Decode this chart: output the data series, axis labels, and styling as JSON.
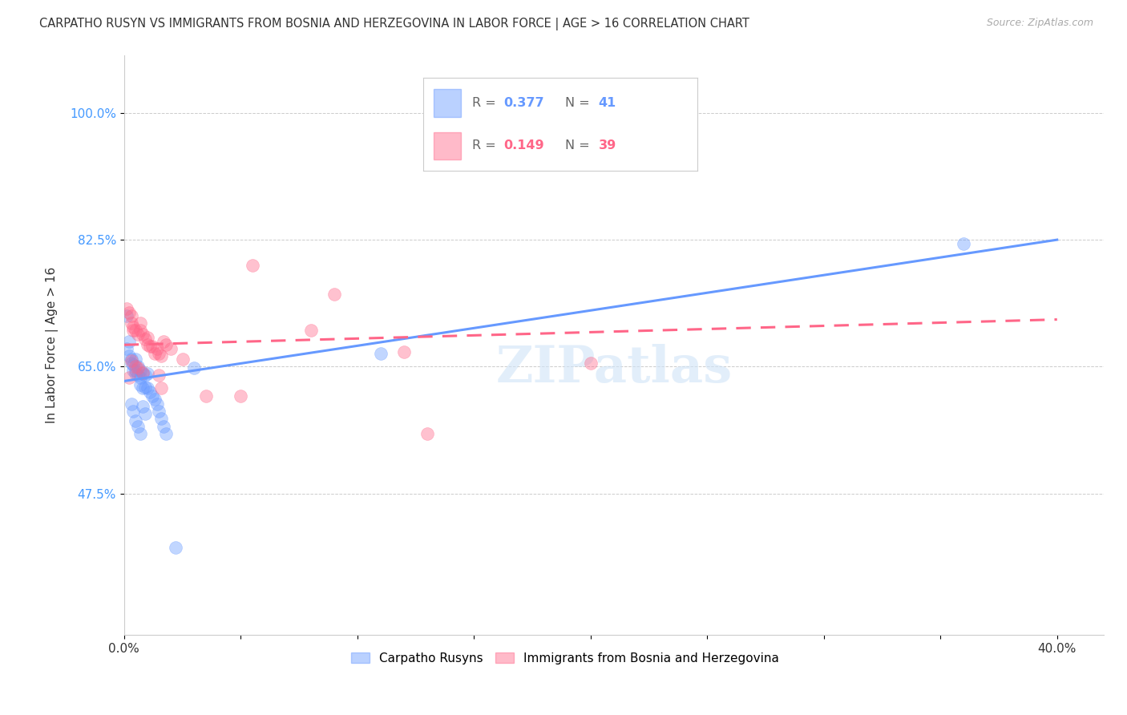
{
  "title": "CARPATHO RUSYN VS IMMIGRANTS FROM BOSNIA AND HERZEGOVINA IN LABOR FORCE | AGE > 16 CORRELATION CHART",
  "source": "Source: ZipAtlas.com",
  "ylabel": "In Labor Force | Age > 16",
  "xlim": [
    0.0,
    0.42
  ],
  "ylim": [
    0.28,
    1.08
  ],
  "yticks": [
    0.475,
    0.65,
    0.825,
    1.0
  ],
  "ytick_labels": [
    "47.5%",
    "65.0%",
    "82.5%",
    "100.0%"
  ],
  "xticks": [
    0.0,
    0.05,
    0.1,
    0.15,
    0.2,
    0.25,
    0.3,
    0.35,
    0.4
  ],
  "xtick_labels": [
    "0.0%",
    "",
    "",
    "",
    "",
    "",
    "",
    "",
    "40.0%"
  ],
  "series1_name": "Carpatho Rusyns",
  "series1_color": "#6699ff",
  "series2_name": "Immigrants from Bosnia and Herzegovina",
  "series2_color": "#ff6688",
  "series1_R": "0.377",
  "series1_N": "41",
  "series2_R": "0.149",
  "series2_N": "39",
  "watermark": "ZIPatlas",
  "background_color": "#ffffff",
  "grid_color": "#cccccc",
  "blue_line_x0": 0.0,
  "blue_line_y0": 0.63,
  "blue_line_x1": 0.4,
  "blue_line_y1": 0.825,
  "pink_line_x0": 0.0,
  "pink_line_y0": 0.68,
  "pink_line_x1": 0.4,
  "pink_line_y1": 0.715,
  "blue_scatter_x": [
    0.001,
    0.001,
    0.002,
    0.002,
    0.003,
    0.003,
    0.004,
    0.004,
    0.005,
    0.005,
    0.005,
    0.006,
    0.006,
    0.007,
    0.007,
    0.007,
    0.008,
    0.008,
    0.009,
    0.009,
    0.01,
    0.01,
    0.011,
    0.012,
    0.013,
    0.014,
    0.015,
    0.016,
    0.017,
    0.018,
    0.003,
    0.004,
    0.005,
    0.006,
    0.007,
    0.008,
    0.009,
    0.03,
    0.36,
    0.11,
    0.022
  ],
  "blue_scatter_y": [
    0.72,
    0.675,
    0.685,
    0.665,
    0.66,
    0.655,
    0.653,
    0.645,
    0.66,
    0.645,
    0.64,
    0.65,
    0.638,
    0.645,
    0.635,
    0.625,
    0.64,
    0.62,
    0.638,
    0.622,
    0.64,
    0.62,
    0.615,
    0.61,
    0.605,
    0.598,
    0.588,
    0.578,
    0.568,
    0.558,
    0.598,
    0.588,
    0.575,
    0.568,
    0.558,
    0.595,
    0.585,
    0.648,
    0.82,
    0.668,
    0.4
  ],
  "pink_scatter_x": [
    0.001,
    0.002,
    0.003,
    0.003,
    0.004,
    0.004,
    0.005,
    0.006,
    0.007,
    0.007,
    0.008,
    0.009,
    0.01,
    0.01,
    0.011,
    0.012,
    0.013,
    0.014,
    0.015,
    0.016,
    0.017,
    0.018,
    0.02,
    0.025,
    0.035,
    0.05,
    0.08,
    0.09,
    0.13,
    0.2,
    0.003,
    0.005,
    0.006,
    0.008,
    0.015,
    0.016,
    0.055,
    0.12,
    0.002
  ],
  "pink_scatter_y": [
    0.73,
    0.725,
    0.72,
    0.71,
    0.705,
    0.7,
    0.7,
    0.695,
    0.71,
    0.7,
    0.695,
    0.688,
    0.69,
    0.68,
    0.678,
    0.678,
    0.668,
    0.675,
    0.668,
    0.665,
    0.685,
    0.68,
    0.675,
    0.66,
    0.61,
    0.61,
    0.7,
    0.75,
    0.558,
    0.655,
    0.658,
    0.65,
    0.648,
    0.642,
    0.638,
    0.62,
    0.79,
    0.67,
    0.635
  ]
}
